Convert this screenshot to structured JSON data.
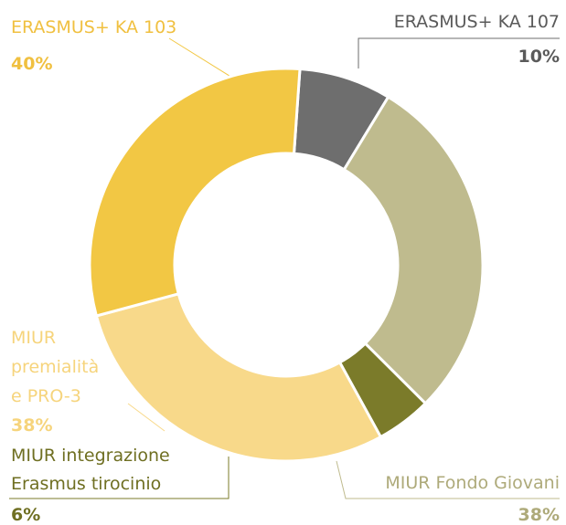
{
  "chart_data": {
    "type": "donut",
    "categories": [
      [
        "ERASMUS+ KA 107"
      ],
      [
        "MIUR Fondo Giovani"
      ],
      [
        "MIUR integrazione",
        "Erasmus tirocinio"
      ],
      [
        "MIUR",
        "premialità",
        "e PRO-3"
      ],
      [
        "ERASMUS+ KA 103"
      ]
    ],
    "values": [
      10,
      38,
      6,
      38,
      40
    ],
    "value_labels": [
      "10%",
      "38%",
      "6%",
      "38%",
      "40%"
    ],
    "colors": [
      "#6e6e6e",
      "#bfbb8e",
      "#7b7b2a",
      "#f8d98a",
      "#f2c744"
    ],
    "label_colors": [
      "#5a5a5a",
      "#aeaa7a",
      "#6f6f22",
      "#f6d47c",
      "#f0c040"
    ]
  }
}
